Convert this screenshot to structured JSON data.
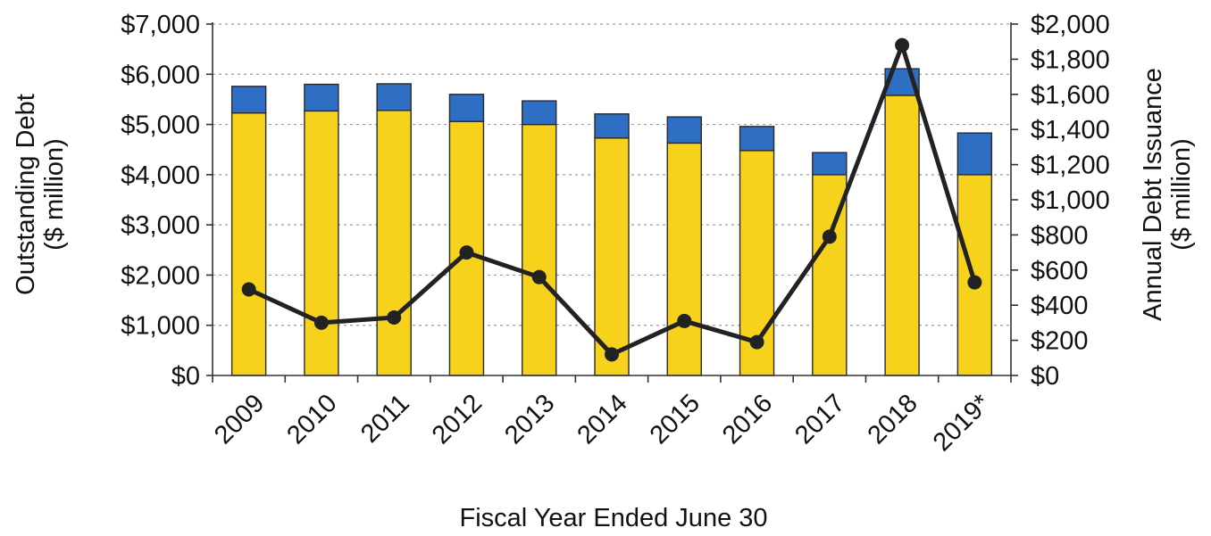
{
  "chart_data": {
    "type": "bar",
    "categories": [
      "2009",
      "2010",
      "2011",
      "2012",
      "2013",
      "2014",
      "2015",
      "2016",
      "2017",
      "2018",
      "2019*"
    ],
    "series": [
      {
        "values": [
          5230,
          5270,
          5280,
          5060,
          5000,
          4730,
          4630,
          4480,
          4000,
          5580,
          4000
        ],
        "color": "#F7D21C",
        "kind": "bar-stack",
        "axis": "left"
      },
      {
        "values": [
          530,
          530,
          530,
          540,
          470,
          480,
          520,
          480,
          440,
          530,
          830
        ],
        "color": "#2E6FC4",
        "kind": "bar-stack",
        "axis": "left"
      },
      {
        "values": [
          490,
          300,
          330,
          700,
          560,
          120,
          310,
          190,
          790,
          1880,
          530
        ],
        "color": "#222222",
        "kind": "line",
        "axis": "right"
      }
    ],
    "ylabel": "Outstanding Debt\n($ million)",
    "y2label": "Annual Debt Issuance\n($ million)",
    "xlabel": "Fiscal Year Ended June 30",
    "ylim": [
      0,
      7000
    ],
    "y2lim": [
      0,
      2000
    ],
    "yticks": [
      "$0",
      "$1,000",
      "$2,000",
      "$3,000",
      "$4,000",
      "$5,000",
      "$6,000",
      "$7,000"
    ],
    "y2ticks": [
      "$0",
      "$200",
      "$400",
      "$600",
      "$800",
      "$1,000",
      "$1,200",
      "$1,400",
      "$1,600",
      "$1,800",
      "$2,000"
    ],
    "grid": true,
    "legend": "none"
  }
}
